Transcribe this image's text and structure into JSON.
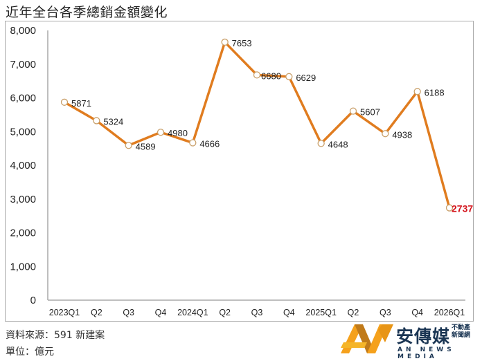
{
  "title": "近年全台各季總銷金額變化",
  "footer": {
    "source": "資料來源：591 新建案",
    "unit": "單位：億元"
  },
  "logo": {
    "name_cn": "安傳媒",
    "sub_line1": "不動產",
    "sub_line2": "新聞網",
    "name_en": "AN NEWS MEDIA"
  },
  "colors": {
    "line": "#e07c1f",
    "marker_fill": "#ffffff",
    "marker_stroke": "#c9a06a",
    "highlight_label": "#d4141c",
    "axis": "#a8a8a8"
  },
  "chart_data": {
    "type": "line",
    "title": "近年全台各季總銷金額變化",
    "xlabel": "",
    "ylabel": "",
    "unit": "億元",
    "ylim": [
      0,
      8000
    ],
    "yticks": [
      "0",
      "1,000",
      "2,000",
      "3,000",
      "4,000",
      "5,000",
      "6,000",
      "7,000",
      "8,000"
    ],
    "grid": false,
    "legend": null,
    "categories": [
      "2023Q1",
      "Q2",
      "Q3",
      "Q4",
      "2024Q1",
      "Q2",
      "Q3",
      "Q4",
      "2025Q1",
      "Q2",
      "Q3",
      "Q4",
      "2026Q1"
    ],
    "series": [
      {
        "name": "總銷金額",
        "values": [
          5871,
          5324,
          4589,
          4980,
          4666,
          7653,
          6680,
          6629,
          4648,
          5607,
          4938,
          6188,
          2737
        ]
      }
    ],
    "data_labels": [
      "5871",
      "5324",
      "4589",
      "4980",
      "4666",
      "7653",
      "6680",
      "6629",
      "4648",
      "5607",
      "4938",
      "6188",
      "2737"
    ],
    "highlight_index": 12
  }
}
